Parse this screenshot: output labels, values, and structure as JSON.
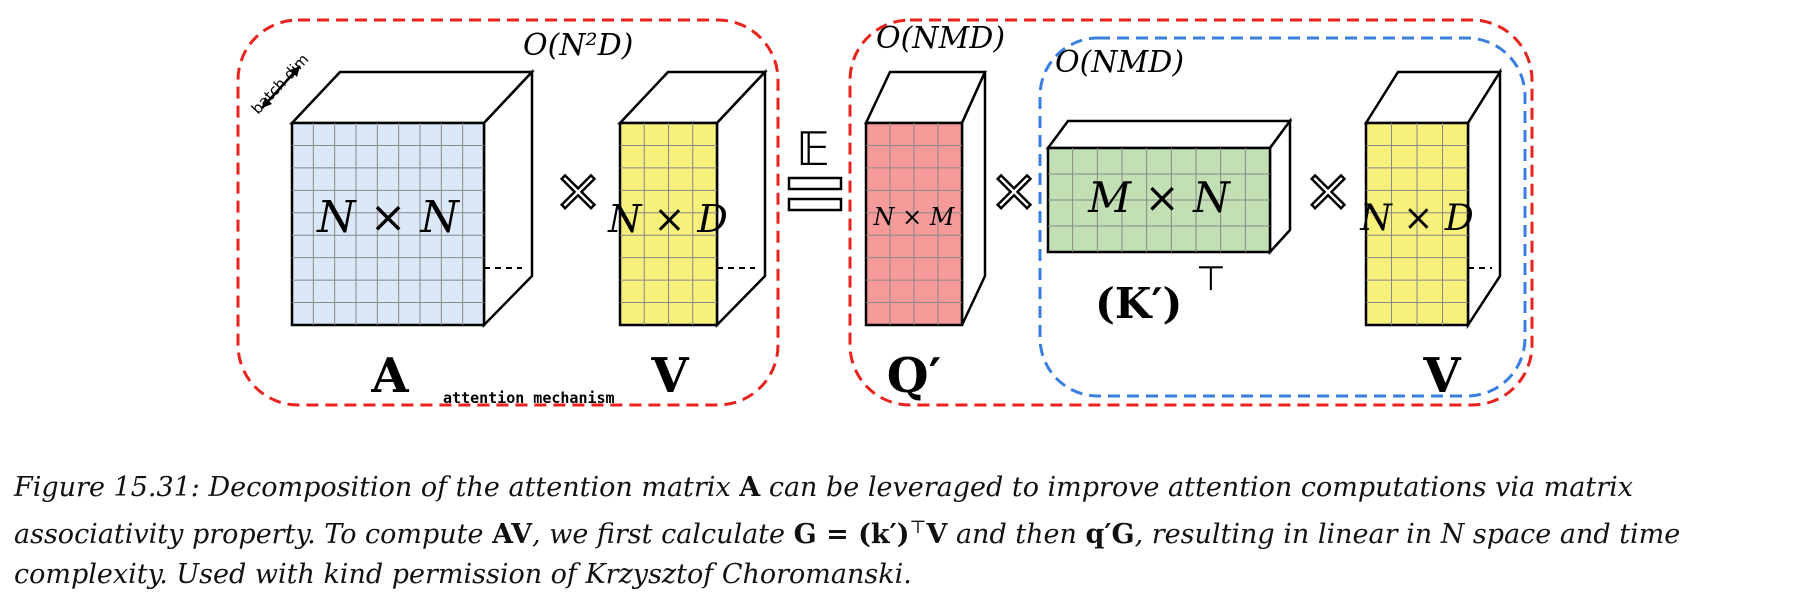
{
  "diagram": {
    "batch_dim_label": "batch dim",
    "complexity_left": "O(N²D)",
    "complexity_q": "O(NMD)",
    "complexity_kv": "O(NMD)",
    "mechanism_label": "attention mechanism",
    "expectation_symbol": "𝔼",
    "times_symbol": "×",
    "matrices": {
      "A": {
        "label": "A",
        "dims": "N × N",
        "color": "#dbe8f7"
      },
      "V1": {
        "label": "V",
        "dims": "N × D",
        "color": "#f7f07a"
      },
      "Q": {
        "label": "Q′",
        "dims": "N × M",
        "color": "#f79a9a"
      },
      "K": {
        "label": "(K′)",
        "sup": "⊤",
        "dims": "M × N",
        "color": "#c2e0b4"
      },
      "V2": {
        "label": "V",
        "dims": "N × D",
        "color": "#f7f07a"
      }
    },
    "colors": {
      "red_dash": "#e8231f",
      "blue_dash": "#3a7fe0",
      "grid": "#888888"
    }
  },
  "caption": {
    "figure_label": "Figure 15.31:",
    "text_1": "Decomposition of the attention matrix",
    "sym_A": "A",
    "text_2": "can be leveraged to improve attention computations via matrix associativity property. To compute",
    "sym_AV": "AV",
    "text_3": ", we first calculate",
    "sym_G": "G = (k′)",
    "sym_T": "⊤",
    "sym_V": "V",
    "text_4": "and then",
    "sym_qG": "q′G",
    "text_5": ", resulting in linear in",
    "sym_N": "N",
    "text_6": "space and time complexity. Used with kind permission of Krzysztof Choromanski."
  }
}
